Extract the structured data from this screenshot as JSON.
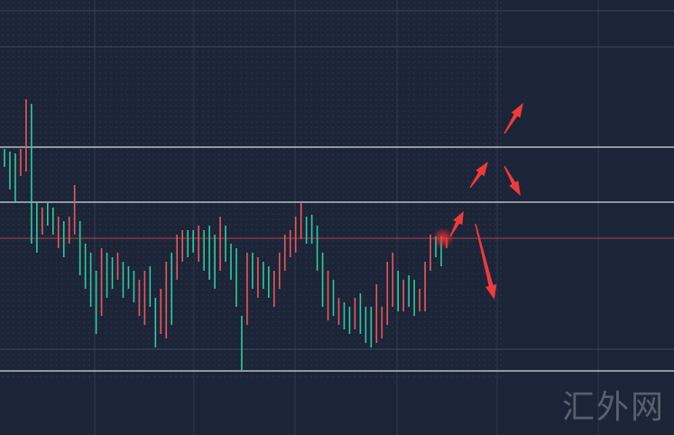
{
  "chart_data": {
    "type": "candlestick",
    "title": "",
    "xlabel": "",
    "ylabel": "",
    "ylim": [
      0,
      482
    ],
    "grid": true,
    "colors": {
      "background": "#1c2437",
      "up": "#e8585a",
      "down": "#2fc9a0",
      "grid": "#2e3850",
      "level_line": "#d8dbe2",
      "price_line": "#b5454a",
      "arrow": "#f03a3a"
    },
    "bars": [
      [
        317,
        297,
        "g"
      ],
      [
        314,
        272,
        "g"
      ],
      [
        312,
        257,
        "g"
      ],
      [
        317,
        287,
        "r"
      ],
      [
        372,
        292,
        "r"
      ],
      [
        367,
        212,
        "g"
      ],
      [
        257,
        202,
        "g"
      ],
      [
        252,
        222,
        "r"
      ],
      [
        257,
        232,
        "g"
      ],
      [
        252,
        222,
        "g"
      ],
      [
        242,
        207,
        "r"
      ],
      [
        237,
        197,
        "g"
      ],
      [
        242,
        212,
        "r"
      ],
      [
        277,
        222,
        "r"
      ],
      [
        237,
        177,
        "g"
      ],
      [
        212,
        162,
        "g"
      ],
      [
        202,
        142,
        "g"
      ],
      [
        182,
        112,
        "g"
      ],
      [
        207,
        132,
        "r"
      ],
      [
        202,
        152,
        "g"
      ],
      [
        197,
        162,
        "g"
      ],
      [
        202,
        172,
        "r"
      ],
      [
        192,
        152,
        "g"
      ],
      [
        187,
        162,
        "g"
      ],
      [
        182,
        147,
        "g"
      ],
      [
        172,
        132,
        "r"
      ],
      [
        182,
        122,
        "r"
      ],
      [
        187,
        142,
        "g"
      ],
      [
        152,
        97,
        "g"
      ],
      [
        162,
        112,
        "r"
      ],
      [
        192,
        107,
        "r"
      ],
      [
        202,
        122,
        "g"
      ],
      [
        222,
        172,
        "r"
      ],
      [
        227,
        192,
        "r"
      ],
      [
        227,
        197,
        "g"
      ],
      [
        227,
        202,
        "g"
      ],
      [
        232,
        192,
        "r"
      ],
      [
        227,
        182,
        "g"
      ],
      [
        232,
        172,
        "g"
      ],
      [
        222,
        162,
        "g"
      ],
      [
        242,
        182,
        "r"
      ],
      [
        232,
        192,
        "g"
      ],
      [
        212,
        172,
        "g"
      ],
      [
        207,
        142,
        "g"
      ],
      [
        132,
        72,
        "g"
      ],
      [
        202,
        122,
        "r"
      ],
      [
        202,
        162,
        "g"
      ],
      [
        197,
        152,
        "r"
      ],
      [
        192,
        162,
        "g"
      ],
      [
        187,
        152,
        "g"
      ],
      [
        182,
        142,
        "r"
      ],
      [
        202,
        162,
        "r"
      ],
      [
        222,
        182,
        "r"
      ],
      [
        227,
        197,
        "r"
      ],
      [
        242,
        202,
        "r"
      ],
      [
        257,
        217,
        "r"
      ],
      [
        242,
        212,
        "g"
      ],
      [
        244,
        212,
        "g"
      ],
      [
        232,
        182,
        "g"
      ],
      [
        202,
        142,
        "g"
      ],
      [
        182,
        127,
        "r"
      ],
      [
        172,
        132,
        "g"
      ],
      [
        152,
        122,
        "r"
      ],
      [
        147,
        117,
        "g"
      ],
      [
        142,
        112,
        "g"
      ],
      [
        152,
        117,
        "r"
      ],
      [
        157,
        112,
        "g"
      ],
      [
        142,
        102,
        "g"
      ],
      [
        142,
        97,
        "g"
      ],
      [
        167,
        102,
        "r"
      ],
      [
        142,
        107,
        "r"
      ],
      [
        192,
        122,
        "r"
      ],
      [
        202,
        142,
        "r"
      ],
      [
        182,
        137,
        "g"
      ],
      [
        172,
        137,
        "r"
      ],
      [
        177,
        142,
        "g"
      ],
      [
        172,
        132,
        "g"
      ],
      [
        162,
        137,
        "r"
      ],
      [
        192,
        137,
        "r"
      ],
      [
        222,
        182,
        "r"
      ],
      [
        220,
        197,
        "g"
      ],
      [
        220,
        187,
        "g"
      ],
      [
        219,
        207,
        "r"
      ]
    ],
    "level_lines": [
      319,
      258,
      71
    ],
    "faint_lines": [
      470,
      430,
      95
    ],
    "price_line": 218
  },
  "watermark": "汇外网"
}
